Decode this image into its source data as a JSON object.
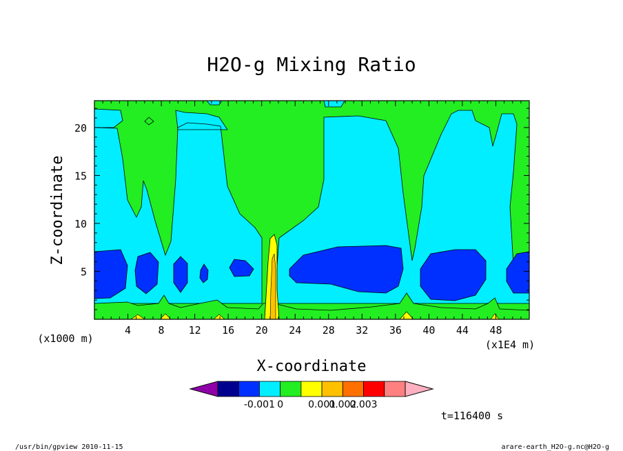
{
  "chart_data": {
    "type": "contour",
    "title": "H2O-g Mixing Ratio",
    "xlabel": "X-coordinate",
    "ylabel": "Z-coordinate",
    "x_unit_note": "(x1E4 m)",
    "z_unit_note": "(x1000 m)",
    "x_ticks": [
      "4",
      "8",
      "12",
      "16",
      "20",
      "24",
      "28",
      "32",
      "36",
      "40",
      "44",
      "48"
    ],
    "z_ticks": [
      "5",
      "10",
      "15",
      "20"
    ],
    "xlim": [
      0,
      52
    ],
    "zlim": [
      0,
      22.8
    ],
    "colorbar": {
      "colors": [
        "#8f00a8",
        "#00008f",
        "#0030ff",
        "#00eeff",
        "#22ee22",
        "#ffff00",
        "#ffc000",
        "#ff7000",
        "#ff0000",
        "#ff8080",
        "#ffb0c0"
      ],
      "tick_labels": [
        "-0.001",
        "0",
        "0.001",
        "0.002",
        "0.003"
      ],
      "tick_edges": [
        2,
        3,
        5,
        6,
        7
      ]
    },
    "time_label": "t=116400 s"
  },
  "footer": {
    "left": "/usr/bin/gpview  2010-11-15",
    "right": "arare-earth_H2O-g.nc@H2O-g"
  }
}
